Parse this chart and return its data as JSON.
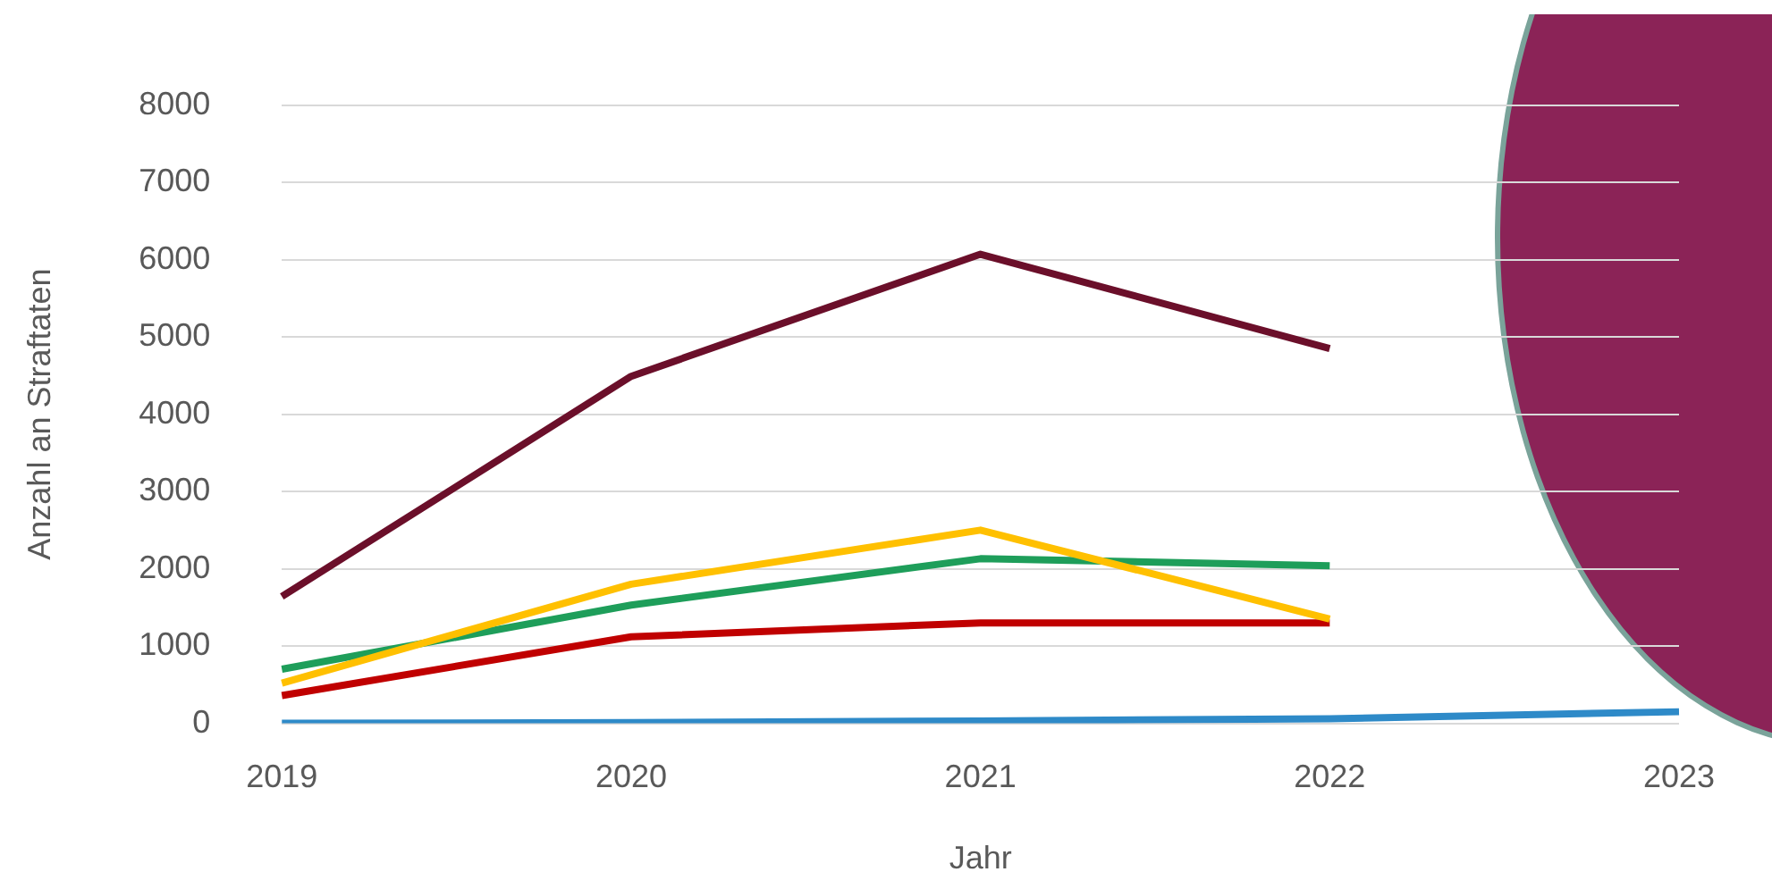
{
  "chart_data": {
    "type": "line",
    "xlabel": "Jahr",
    "ylabel": "Anzahl an Straftaten",
    "categories": [
      "2019",
      "2020",
      "2021",
      "2022",
      "2023"
    ],
    "series": [
      {
        "color": "#6b0f2a",
        "values": [
          1640,
          4490,
          6070,
          4850,
          null
        ]
      },
      {
        "color": "#ffc000",
        "values": [
          520,
          1800,
          2500,
          1350,
          null
        ]
      },
      {
        "color": "#1e9e5a",
        "values": [
          700,
          1530,
          2130,
          2040,
          null
        ]
      },
      {
        "color": "#c00000",
        "values": [
          360,
          1120,
          1300,
          1300,
          null
        ]
      },
      {
        "color": "#2e8ac8",
        "values": [
          0,
          10,
          30,
          60,
          150
        ]
      }
    ],
    "ylim": [
      0,
      8000
    ],
    "yticks": [
      0,
      1000,
      2000,
      3000,
      4000,
      5000,
      6000,
      7000,
      8000
    ],
    "grid": "y",
    "legend": false,
    "marker": "none",
    "line_style": "solid"
  }
}
